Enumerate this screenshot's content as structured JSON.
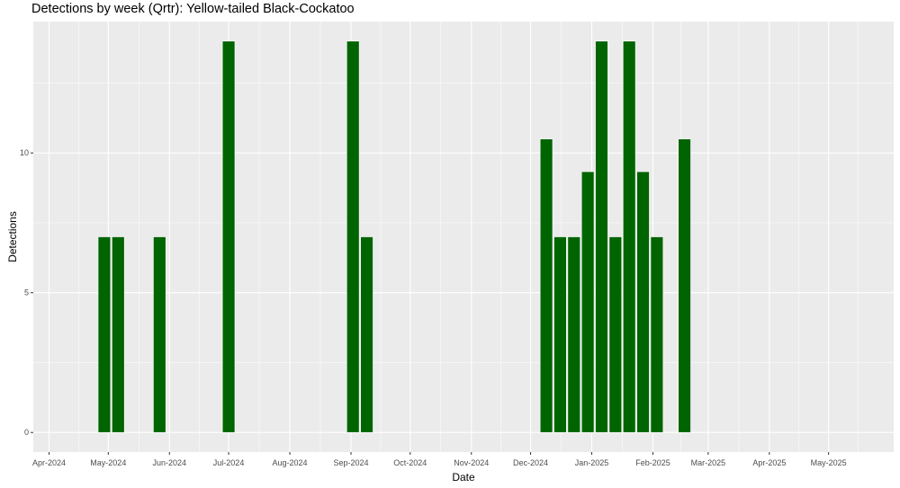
{
  "chart_data": {
    "type": "bar",
    "title": "Detections by week (Qrtr): Yellow-tailed Black-Cockatoo",
    "xlabel": "Date",
    "ylabel": "Detections",
    "bar_color": "#006400",
    "panel_background": "#ebebeb",
    "grid": true,
    "xlim": [
      "2024-03-24",
      "2025-06-03"
    ],
    "ylim": [
      -0.7,
      14.7
    ],
    "x_ticks": [
      {
        "date": "2024-04-01",
        "label": "Apr-2024"
      },
      {
        "date": "2024-05-01",
        "label": "May-2024"
      },
      {
        "date": "2024-06-01",
        "label": "Jun-2024"
      },
      {
        "date": "2024-07-01",
        "label": "Jul-2024"
      },
      {
        "date": "2024-08-01",
        "label": "Aug-2024"
      },
      {
        "date": "2024-09-01",
        "label": "Sep-2024"
      },
      {
        "date": "2024-10-01",
        "label": "Oct-2024"
      },
      {
        "date": "2024-11-01",
        "label": "Nov-2024"
      },
      {
        "date": "2024-12-01",
        "label": "Dec-2024"
      },
      {
        "date": "2025-01-01",
        "label": "Jan-2025"
      },
      {
        "date": "2025-02-01",
        "label": "Feb-2025"
      },
      {
        "date": "2025-03-01",
        "label": "Mar-2025"
      },
      {
        "date": "2025-04-01",
        "label": "Apr-2025"
      },
      {
        "date": "2025-05-01",
        "label": "May-2025"
      }
    ],
    "y_ticks": [
      0,
      5,
      10
    ],
    "data": [
      {
        "x": "2024-04-29",
        "y": 7
      },
      {
        "x": "2024-05-06",
        "y": 7
      },
      {
        "x": "2024-05-27",
        "y": 7
      },
      {
        "x": "2024-07-01",
        "y": 14
      },
      {
        "x": "2024-09-02",
        "y": 14
      },
      {
        "x": "2024-09-09",
        "y": 7
      },
      {
        "x": "2024-12-09",
        "y": 10.5
      },
      {
        "x": "2024-12-16",
        "y": 7
      },
      {
        "x": "2024-12-23",
        "y": 7
      },
      {
        "x": "2024-12-30",
        "y": 9.33
      },
      {
        "x": "2025-01-06",
        "y": 14
      },
      {
        "x": "2025-01-13",
        "y": 7
      },
      {
        "x": "2025-01-20",
        "y": 14
      },
      {
        "x": "2025-01-27",
        "y": 9.33
      },
      {
        "x": "2025-02-03",
        "y": 7
      },
      {
        "x": "2025-02-17",
        "y": 10.5
      }
    ]
  }
}
